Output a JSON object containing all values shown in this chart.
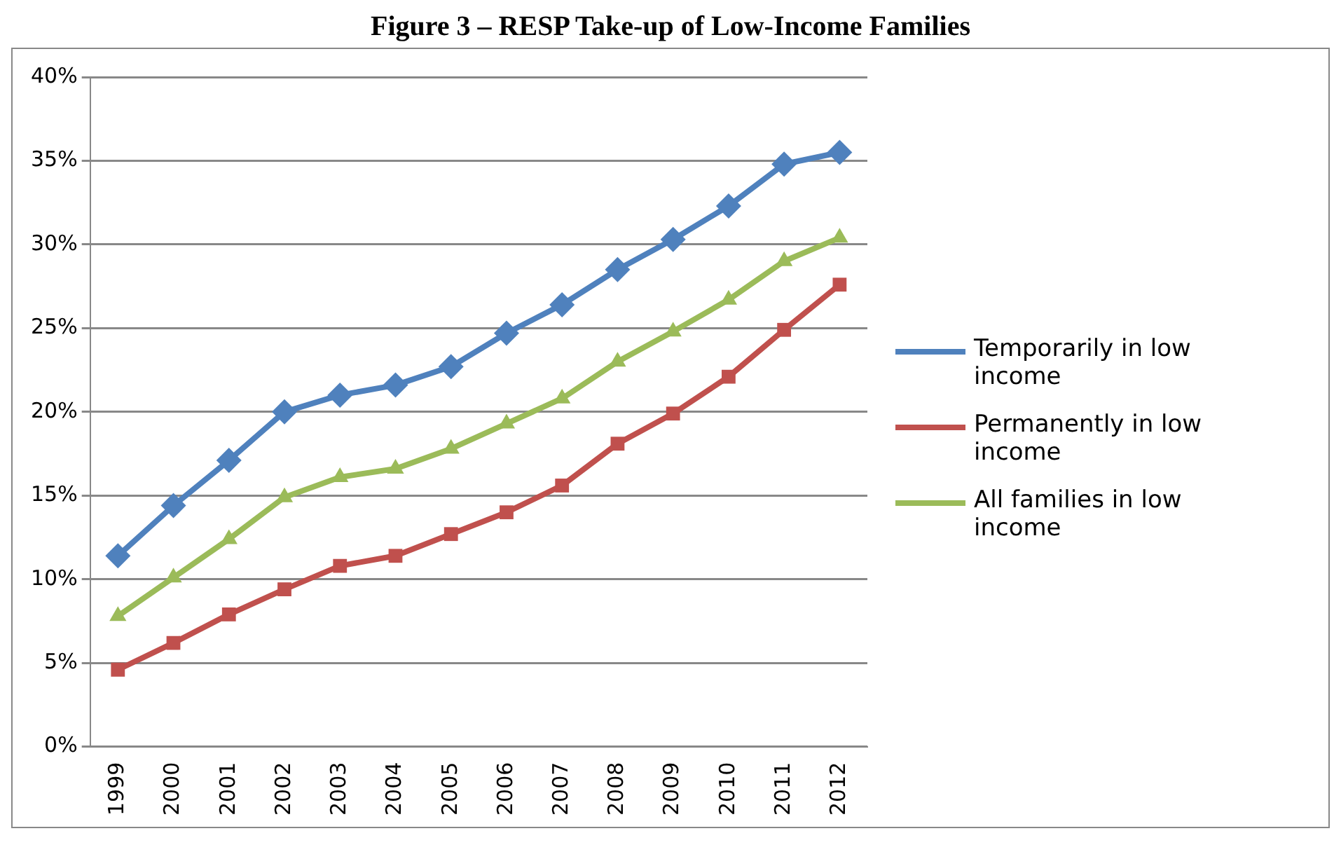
{
  "chart_data": {
    "type": "line",
    "title": "Figure 3 – RESP Take-up of Low-Income Families",
    "categories": [
      "1999",
      "2000",
      "2001",
      "2002",
      "2003",
      "2004",
      "2005",
      "2006",
      "2007",
      "2008",
      "2009",
      "2010",
      "2011",
      "2012"
    ],
    "series": [
      {
        "name": "Temporarily in low income",
        "color": "#4f81bd",
        "marker": "diamond",
        "values": [
          11.4,
          14.4,
          17.1,
          20.0,
          21.0,
          21.6,
          22.7,
          24.7,
          26.4,
          28.5,
          30.3,
          32.3,
          34.8,
          35.5
        ]
      },
      {
        "name": "Permanently in low income",
        "color": "#c0504d",
        "marker": "square",
        "values": [
          4.6,
          6.2,
          7.9,
          9.4,
          10.8,
          11.4,
          12.7,
          14.0,
          15.6,
          18.1,
          19.9,
          22.1,
          24.9,
          27.6
        ]
      },
      {
        "name": "All families in low income",
        "color": "#9bbb59",
        "marker": "triangle",
        "values": [
          7.8,
          10.1,
          12.4,
          14.9,
          16.1,
          16.6,
          17.8,
          19.3,
          20.8,
          23.0,
          24.8,
          26.7,
          29.0,
          30.4
        ]
      }
    ],
    "ylim": [
      0,
      40
    ],
    "yticks": [
      {
        "value": 0,
        "label": "0%"
      },
      {
        "value": 5,
        "label": "5%"
      },
      {
        "value": 10,
        "label": "10%"
      },
      {
        "value": 15,
        "label": "15%"
      },
      {
        "value": 20,
        "label": "20%"
      },
      {
        "value": 25,
        "label": "25%"
      },
      {
        "value": 30,
        "label": "30%"
      },
      {
        "value": 35,
        "label": "35%"
      },
      {
        "value": 40,
        "label": "40%"
      }
    ],
    "grid": "y",
    "legend": "right",
    "line_style": "solid"
  }
}
